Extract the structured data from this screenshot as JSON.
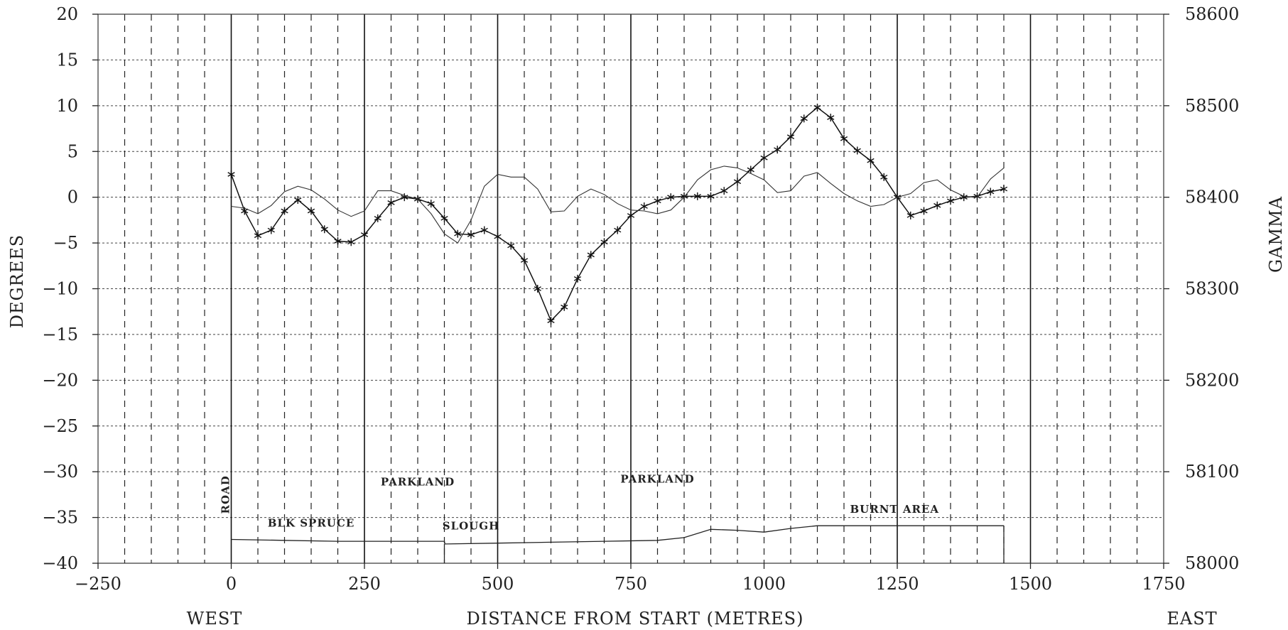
{
  "chart_data": {
    "type": "line",
    "xlabel": "DISTANCE FROM START (METRES)",
    "ylabel": "DEGREES",
    "y2label": "GAMMA",
    "xlim": [
      -250,
      1750
    ],
    "ylim": [
      -40,
      20
    ],
    "y2lim": [
      58000,
      58600
    ],
    "x_ticks": [
      -250,
      0,
      250,
      500,
      750,
      1000,
      1250,
      1500,
      1750
    ],
    "y_ticks": [
      20,
      15,
      10,
      5,
      0,
      -5,
      -10,
      -15,
      -20,
      -25,
      -30,
      -35,
      -40
    ],
    "y2_ticks": [
      58600,
      58500,
      58400,
      58300,
      58200,
      58100,
      58000
    ],
    "x_tick_labels": [
      "−250",
      "0",
      "250",
      "500",
      "750",
      "1000",
      "1250",
      "1500",
      "1750"
    ],
    "y_tick_labels": [
      "20",
      "15",
      "10",
      "5",
      "0",
      "−5",
      "−10",
      "−15",
      "−20",
      "−25",
      "−30",
      "−35",
      "−40"
    ],
    "y2_tick_labels": [
      "58600",
      "58500",
      "58400",
      "58300",
      "58200",
      "58100",
      "58000"
    ],
    "direction_labels": {
      "left": "WEST",
      "right": "EAST"
    },
    "grid": true,
    "major_verticals": [
      0,
      250,
      500,
      750,
      1250,
      1500
    ],
    "series": [
      {
        "marker": "star",
        "axis": "left",
        "x": [
          0,
          25,
          50,
          75,
          100,
          125,
          150,
          175,
          200,
          225,
          250,
          275,
          300,
          325,
          350,
          375,
          400,
          425,
          450,
          475,
          500,
          525,
          550,
          575,
          600,
          625,
          650,
          675,
          700,
          725,
          750,
          775,
          800,
          825,
          850,
          875,
          900,
          925,
          950,
          975,
          1000,
          1025,
          1050,
          1075,
          1100,
          1125,
          1150,
          1175,
          1200,
          1225,
          1250,
          1275,
          1300,
          1325,
          1350,
          1375,
          1400,
          1425,
          1450
        ],
        "values": [
          2.5,
          -1.5,
          -4.2,
          -3.6,
          -1.5,
          -0.3,
          -1.5,
          -3.5,
          -4.8,
          -4.9,
          -4.1,
          -2.3,
          -0.6,
          0.0,
          -0.2,
          -0.7,
          -2.3,
          -4.0,
          -4.1,
          -3.6,
          -4.3,
          -5.3,
          -6.9,
          -10.0,
          -13.5,
          -12.0,
          -8.9,
          -6.3,
          -4.9,
          -3.6,
          -2.0,
          -1.0,
          -0.4,
          0.0,
          0.1,
          0.1,
          0.1,
          0.7,
          1.7,
          3.0,
          4.3,
          5.2,
          6.6,
          8.6,
          9.8,
          8.7,
          6.4,
          5.1,
          4.0,
          2.2,
          0.0,
          -2.0,
          -1.5,
          -0.9,
          -0.4,
          0.0,
          0.1,
          0.6,
          0.9
        ]
      },
      {
        "marker": "none",
        "axis": "left",
        "x": [
          0,
          25,
          50,
          75,
          100,
          125,
          150,
          175,
          200,
          225,
          250,
          275,
          300,
          325,
          350,
          375,
          400,
          425,
          450,
          475,
          500,
          525,
          550,
          575,
          600,
          625,
          650,
          675,
          700,
          725,
          750,
          775,
          800,
          825,
          850,
          875,
          900,
          925,
          950,
          975,
          1000,
          1025,
          1050,
          1075,
          1100,
          1125,
          1150,
          1175,
          1200,
          1225,
          1250,
          1275,
          1300,
          1325,
          1350,
          1375,
          1400,
          1425,
          1450
        ],
        "values": [
          -1.0,
          -1.2,
          -1.8,
          -0.9,
          0.6,
          1.2,
          0.8,
          -0.2,
          -1.4,
          -2.1,
          -1.5,
          0.7,
          0.7,
          0.2,
          -0.2,
          -1.8,
          -4.0,
          -5.0,
          -2.5,
          1.2,
          2.5,
          2.2,
          2.2,
          0.9,
          -1.6,
          -1.5,
          0.1,
          0.9,
          0.3,
          -0.7,
          -1.4,
          -1.5,
          -1.8,
          -1.4,
          0.0,
          1.9,
          3.0,
          3.4,
          3.2,
          2.6,
          1.9,
          0.5,
          0.7,
          2.3,
          2.7,
          1.5,
          0.4,
          -0.4,
          -1.0,
          -0.8,
          0.0,
          0.4,
          1.6,
          1.9,
          0.8,
          0.1,
          0.0,
          2.0,
          3.2
        ]
      },
      {
        "marker": "none",
        "axis": "right",
        "x": [
          0,
          100,
          200,
          300,
          400,
          401,
          500,
          600,
          700,
          800,
          850,
          900,
          950,
          1000,
          1050,
          1100,
          1150,
          1200,
          1250,
          1300,
          1350,
          1400,
          1450
        ],
        "values": [
          58026,
          58025,
          58024,
          58024,
          58024,
          58021,
          58022,
          58023,
          58024,
          58025,
          58028,
          58037,
          58036,
          58034,
          58038,
          58041,
          58041,
          58041,
          58041,
          58041,
          58041,
          58041,
          58041
        ]
      }
    ],
    "annotations": [
      {
        "text": "ROAD",
        "x": 0,
        "y": -32.5,
        "rotate": true
      },
      {
        "text": "BLK  SPRUCE",
        "x": 150,
        "y": -36
      },
      {
        "text": "PARKLAND",
        "x": 350,
        "y": -31.5
      },
      {
        "text": "SLOUGH",
        "x": 450,
        "y": -36.3
      },
      {
        "text": "PARKLAND",
        "x": 800,
        "y": -31.2
      },
      {
        "text": "BURNT  AREA",
        "x": 1245,
        "y": -34.5
      }
    ]
  }
}
